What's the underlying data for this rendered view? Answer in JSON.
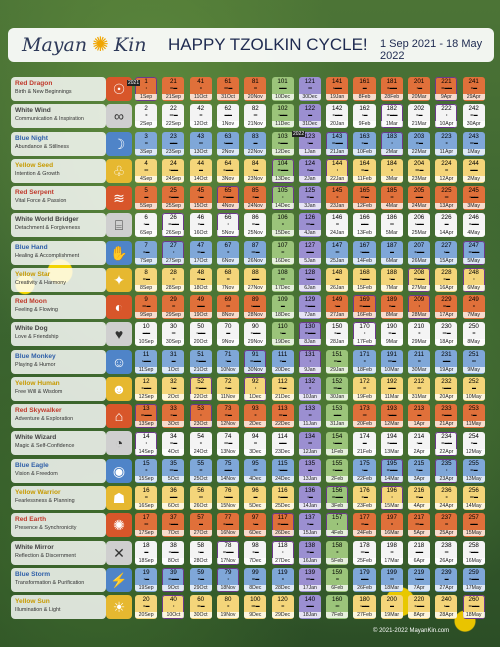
{
  "header": {
    "logo_left": "Mayan",
    "logo_right": "Kin",
    "title": "HAPPY TZOLKIN CYCLE!",
    "date_range": "1 Sep 2021 - 18 May 2022"
  },
  "footer": "© 2021-2022 MayanKin.com",
  "year_tags": [
    "2021",
    "2022"
  ],
  "colors": {
    "red": "#e0703a",
    "white": "#f4f4f4",
    "blue": "#7fa7d8",
    "yellow": "#f4d57a",
    "galactic": "#9b8fd1",
    "green": "#9bc47a"
  },
  "signs": [
    {
      "name": "Red Dragon",
      "desc": "Birth & New Beginnings",
      "color": "red",
      "glyph": "☉"
    },
    {
      "name": "White Wind",
      "desc": "Communication & Inspiration",
      "color": "white",
      "glyph": "∞"
    },
    {
      "name": "Blue Night",
      "desc": "Abundance & Stillness",
      "color": "blue",
      "glyph": "☽"
    },
    {
      "name": "Yellow Seed",
      "desc": "Intention & Growth",
      "color": "yellow",
      "glyph": "♧"
    },
    {
      "name": "Red Serpent",
      "desc": "Vital Force & Passion",
      "color": "red",
      "glyph": "≋"
    },
    {
      "name": "White World Bridger",
      "desc": "Detachment & Forgiveness",
      "color": "white",
      "glyph": "⌸"
    },
    {
      "name": "Blue Hand",
      "desc": "Healing & Accomplishment",
      "color": "blue",
      "glyph": "✋"
    },
    {
      "name": "Yellow Star",
      "desc": "Creativity & Harmony",
      "color": "yellow",
      "glyph": "✦"
    },
    {
      "name": "Red Moon",
      "desc": "Feeling & Flowing",
      "color": "red",
      "glyph": "◐"
    },
    {
      "name": "White Dog",
      "desc": "Love & Friendship",
      "color": "white",
      "glyph": "♥"
    },
    {
      "name": "Blue Monkey",
      "desc": "Playing & Humor",
      "color": "blue",
      "glyph": "☺"
    },
    {
      "name": "Yellow Human",
      "desc": "Free Will & Wisdom",
      "color": "yellow",
      "glyph": "☻"
    },
    {
      "name": "Red Skywalker",
      "desc": "Adventure & Exploration",
      "color": "red",
      "glyph": "⌂"
    },
    {
      "name": "White Wizard",
      "desc": "Magic & Self-Confidence",
      "color": "white",
      "glyph": "◔"
    },
    {
      "name": "Blue Eagle",
      "desc": "Vision & Freedom",
      "color": "blue",
      "glyph": "◉"
    },
    {
      "name": "Yellow Warrior",
      "desc": "Fearlessness & Planning",
      "color": "yellow",
      "glyph": "☗"
    },
    {
      "name": "Red Earth",
      "desc": "Presence & Synchronicity",
      "color": "red",
      "glyph": "✺"
    },
    {
      "name": "White Mirror",
      "desc": "Reflection & Discernment",
      "color": "white",
      "glyph": "✕"
    },
    {
      "name": "Blue Storm",
      "desc": "Transformation & Purification",
      "color": "blue",
      "glyph": "⚡"
    },
    {
      "name": "Yellow Sun",
      "desc": "Illumination & Light",
      "color": "yellow",
      "glyph": "☀"
    }
  ],
  "columns": [
    {
      "dates": [
        "1Sep",
        "2Sep",
        "3Sep",
        "4Sep",
        "5Sep",
        "6Sep",
        "7Sep",
        "8Sep",
        "9Sep",
        "10Sep",
        "11Sep",
        "12Sep",
        "13Sep",
        "14Sep",
        "15Sep",
        "16Sep",
        "17Sep",
        "18Sep",
        "19Sep",
        "20Sep"
      ]
    },
    {
      "dates": [
        "21Sep",
        "22Sep",
        "23Sep",
        "24Sep",
        "25Sep",
        "26Sep",
        "27Sep",
        "28Sep",
        "29Sep",
        "30Sep",
        "1Oct",
        "2Oct",
        "3Oct",
        "4Oct",
        "5Oct",
        "6Oct",
        "7Oct",
        "8Oct",
        "9Oct",
        "10Oct"
      ]
    },
    {
      "dates": [
        "11Oct",
        "12Oct",
        "13Oct",
        "14Oct",
        "15Oct",
        "16Oct",
        "17Oct",
        "18Oct",
        "19Oct",
        "20Oct",
        "21Oct",
        "22Oct",
        "23Oct",
        "24Oct",
        "25Oct",
        "26Oct",
        "27Oct",
        "28Oct",
        "29Oct",
        "30Oct"
      ]
    },
    {
      "dates": [
        "31Oct",
        "1Nov",
        "2Nov",
        "3Nov",
        "4Nov",
        "5Nov",
        "6Nov",
        "7Nov",
        "8Nov",
        "9Nov",
        "10Nov",
        "11Nov",
        "12Nov",
        "13Nov",
        "14Nov",
        "15Nov",
        "16Nov",
        "17Nov",
        "18Nov",
        "19Nov"
      ]
    },
    {
      "dates": [
        "20Nov",
        "21Nov",
        "22Nov",
        "23Nov",
        "24Nov",
        "25Nov",
        "26Nov",
        "27Nov",
        "28Nov",
        "29Nov",
        "30Nov",
        "1Dec",
        "2Dec",
        "3Dec",
        "4Dec",
        "5Dec",
        "6Dec",
        "7Dec",
        "8Dec",
        "9Dec"
      ]
    },
    {
      "dates": [
        "10Dec",
        "11Dec",
        "12Dec",
        "13Dec",
        "14Dec",
        "15Dec",
        "16Dec",
        "17Dec",
        "18Dec",
        "19Dec",
        "20Dec",
        "21Dec",
        "22Dec",
        "23Dec",
        "24Dec",
        "25Dec",
        "26Dec",
        "27Dec",
        "28Dec",
        "29Dec"
      ]
    },
    {
      "dates": [
        "30Dec",
        "31Dec",
        "1Jan",
        "2Jan",
        "3Jan",
        "4Jan",
        "5Jan",
        "6Jan",
        "7Jan",
        "8Jan",
        "9Jan",
        "10Jan",
        "11Jan",
        "12Jan",
        "13Jan",
        "14Jan",
        "15Jan",
        "16Jan",
        "17Jan",
        "18Jan"
      ]
    },
    {
      "dates": [
        "19Jan",
        "20Jan",
        "21Jan",
        "22Jan",
        "23Jan",
        "24Jan",
        "25Jan",
        "26Jan",
        "27Jan",
        "28Jan",
        "29Jan",
        "30Jan",
        "31Jan",
        "1Feb",
        "2Feb",
        "3Feb",
        "4Feb",
        "5Feb",
        "6Feb",
        "7Feb"
      ]
    },
    {
      "dates": [
        "8Feb",
        "9Feb",
        "10Feb",
        "11Feb",
        "12Feb",
        "13Feb",
        "14Feb",
        "15Feb",
        "16Feb",
        "17Feb",
        "18Feb",
        "19Feb",
        "20Feb",
        "21Feb",
        "22Feb",
        "23Feb",
        "24Feb",
        "25Feb",
        "26Feb",
        "27Feb"
      ]
    },
    {
      "dates": [
        "28Feb",
        "1Mar",
        "2Mar",
        "3Mar",
        "4Mar",
        "5Mar",
        "6Mar",
        "7Mar",
        "8Mar",
        "9Mar",
        "10Mar",
        "11Mar",
        "12Mar",
        "13Mar",
        "14Mar",
        "15Mar",
        "16Mar",
        "17Mar",
        "18Mar",
        "19Mar"
      ]
    },
    {
      "dates": [
        "20Mar",
        "21Mar",
        "22Mar",
        "23Mar",
        "24Mar",
        "25Mar",
        "26Mar",
        "27Mar",
        "28Mar",
        "29Mar",
        "30Mar",
        "31Mar",
        "1Apr",
        "2Apr",
        "3Apr",
        "4Apr",
        "5Apr",
        "6Apr",
        "7Apr",
        "8Apr"
      ]
    },
    {
      "dates": [
        "9Apr",
        "10Apr",
        "11Apr",
        "12Apr",
        "13Apr",
        "14Apr",
        "15Apr",
        "16Apr",
        "17Apr",
        "18Apr",
        "19Apr",
        "20Apr",
        "21Apr",
        "22Apr",
        "23Apr",
        "24Apr",
        "25Apr",
        "26Apr",
        "27Apr",
        "28Apr"
      ]
    },
    {
      "dates": [
        "29Apr",
        "30Apr",
        "1May",
        "2May",
        "3May",
        "4May",
        "5May",
        "6May",
        "7May",
        "8May",
        "9May",
        "10May",
        "11May",
        "12May",
        "13May",
        "14May",
        "15May",
        "16May",
        "17May",
        "18May"
      ]
    }
  ]
}
